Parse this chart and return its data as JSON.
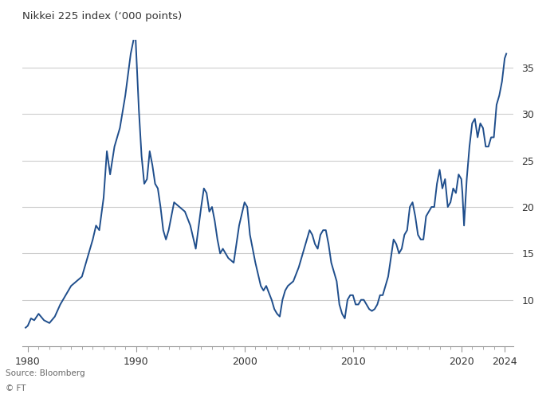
{
  "title": "Nikkei 225 index (‘000 points)",
  "source": "Source: Bloomberg",
  "footer": "© FT",
  "line_color": "#1f4e8c",
  "background_color": "#ffffff",
  "grid_color": "#cccccc",
  "text_color": "#333333",
  "ylim": [
    5,
    38
  ],
  "yticks": [
    10,
    15,
    20,
    25,
    30,
    35
  ],
  "xlim": [
    1979.5,
    2024.8
  ],
  "xticks": [
    1980,
    1990,
    2000,
    2010,
    2020,
    2024
  ],
  "line_width": 1.4,
  "key_points_x": [
    1979.8,
    1980.0,
    1980.3,
    1980.6,
    1981.0,
    1981.5,
    1982.0,
    1982.5,
    1983.0,
    1983.5,
    1984.0,
    1984.5,
    1985.0,
    1985.5,
    1986.0,
    1986.3,
    1986.6,
    1987.0,
    1987.3,
    1987.6,
    1988.0,
    1988.5,
    1989.0,
    1989.5,
    1989.92,
    1990.25,
    1990.5,
    1990.75,
    1991.0,
    1991.25,
    1991.5,
    1991.75,
    1992.0,
    1992.25,
    1992.5,
    1992.75,
    1993.0,
    1993.5,
    1994.0,
    1994.5,
    1995.0,
    1995.5,
    1996.0,
    1996.25,
    1996.5,
    1996.75,
    1997.0,
    1997.25,
    1997.5,
    1997.75,
    1998.0,
    1998.5,
    1999.0,
    1999.5,
    2000.0,
    2000.25,
    2000.5,
    2000.75,
    2001.0,
    2001.5,
    2001.75,
    2002.0,
    2002.5,
    2002.75,
    2003.0,
    2003.25,
    2003.5,
    2003.75,
    2004.0,
    2004.5,
    2005.0,
    2005.5,
    2005.75,
    2006.0,
    2006.25,
    2006.5,
    2006.75,
    2007.0,
    2007.25,
    2007.5,
    2007.75,
    2008.0,
    2008.25,
    2008.5,
    2008.75,
    2009.0,
    2009.25,
    2009.5,
    2009.75,
    2010.0,
    2010.25,
    2010.5,
    2010.75,
    2011.0,
    2011.25,
    2011.5,
    2011.75,
    2012.0,
    2012.25,
    2012.5,
    2012.75,
    2013.0,
    2013.25,
    2013.5,
    2013.75,
    2014.0,
    2014.25,
    2014.5,
    2014.75,
    2015.0,
    2015.25,
    2015.5,
    2015.75,
    2016.0,
    2016.25,
    2016.5,
    2016.75,
    2017.0,
    2017.25,
    2017.5,
    2017.75,
    2018.0,
    2018.25,
    2018.5,
    2018.75,
    2019.0,
    2019.25,
    2019.5,
    2019.75,
    2020.0,
    2020.1,
    2020.25,
    2020.5,
    2020.75,
    2021.0,
    2021.25,
    2021.5,
    2021.75,
    2022.0,
    2022.25,
    2022.5,
    2022.75,
    2023.0,
    2023.25,
    2023.5,
    2023.75,
    2024.0,
    2024.15
  ],
  "key_points_y": [
    7.0,
    7.2,
    8.0,
    7.8,
    8.5,
    7.8,
    7.5,
    8.2,
    9.5,
    10.5,
    11.5,
    12.0,
    12.5,
    14.5,
    16.5,
    18.0,
    17.5,
    21.0,
    26.0,
    23.5,
    26.5,
    28.5,
    32.0,
    36.5,
    38.9,
    30.5,
    25.5,
    22.5,
    23.0,
    26.0,
    24.5,
    22.5,
    22.0,
    20.0,
    17.5,
    16.5,
    17.5,
    20.5,
    20.0,
    19.5,
    18.0,
    15.5,
    20.0,
    22.0,
    21.5,
    19.5,
    20.0,
    18.5,
    16.5,
    15.0,
    15.5,
    14.5,
    14.0,
    18.0,
    20.5,
    20.0,
    17.0,
    15.5,
    14.0,
    11.5,
    11.0,
    11.5,
    10.0,
    9.0,
    8.5,
    8.2,
    10.0,
    11.0,
    11.5,
    12.0,
    13.5,
    15.5,
    16.5,
    17.5,
    17.0,
    16.0,
    15.5,
    17.0,
    17.5,
    17.5,
    16.0,
    14.0,
    13.0,
    12.0,
    9.5,
    8.5,
    8.0,
    10.0,
    10.5,
    10.5,
    9.5,
    9.5,
    10.0,
    10.0,
    9.5,
    9.0,
    8.8,
    9.0,
    9.5,
    10.5,
    10.5,
    11.5,
    12.5,
    14.5,
    16.5,
    16.0,
    15.0,
    15.5,
    17.0,
    17.5,
    20.0,
    20.5,
    19.0,
    17.0,
    16.5,
    16.5,
    19.0,
    19.5,
    20.0,
    20.0,
    22.5,
    24.0,
    22.0,
    23.0,
    20.0,
    20.5,
    22.0,
    21.5,
    23.5,
    23.0,
    21.5,
    18.0,
    23.0,
    26.5,
    29.0,
    29.5,
    27.5,
    29.0,
    28.5,
    26.5,
    26.5,
    27.5,
    27.5,
    31.0,
    32.0,
    33.5,
    36.0,
    36.5
  ]
}
